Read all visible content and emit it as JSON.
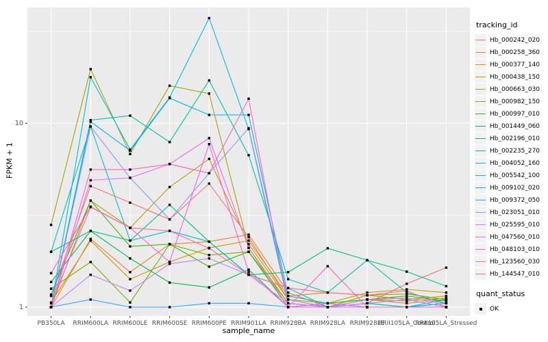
{
  "figure": {
    "y_axis_title": "FPKM + 1",
    "x_axis_title": "sample_name"
  },
  "chart_data": {
    "type": "line",
    "title": "",
    "xlabel": "sample_name",
    "ylabel": "FPKM + 1",
    "y_scale": "log10",
    "ylim": [
      0.9,
      42.6
    ],
    "grid": true,
    "legend_position": "right",
    "legend_title": "tracking_id",
    "point_legend": {
      "title": "quant_status",
      "label": "OK",
      "marker": "black-square"
    },
    "y_ticks": [
      {
        "label": "10",
        "value": 10
      },
      {
        "label": "1",
        "value": 1
      }
    ],
    "y_minor_gridlines": [
      3.162,
      31.62
    ],
    "categories": [
      "PB350LA",
      "RRIM600LA",
      "RRIM600LE",
      "RRIM600SE",
      "RRIM600PE",
      "RRIM901LA",
      "RRIM928BA",
      "RRIM928LA",
      "RRIM928LE",
      "RRII105LA_Control",
      "RRII105LA_Stressed"
    ],
    "series": [
      {
        "name": "Hb_000242_020",
        "color": "#F8766D",
        "values": [
          1.15,
          4.55,
          3.7,
          3.0,
          4.7,
          2.4,
          1.1,
          1.0,
          1.05,
          1.34,
          1.64
        ]
      },
      {
        "name": "Hb_000258_360",
        "color": "#EA8331",
        "values": [
          1.0,
          2.35,
          1.55,
          2.2,
          2.27,
          2.48,
          1.2,
          1.0,
          1.1,
          1.05,
          1.1
        ]
      },
      {
        "name": "Hb_000377_140",
        "color": "#D89000",
        "values": [
          1.06,
          2.3,
          1.42,
          1.76,
          2.1,
          2.3,
          1.15,
          1.2,
          1.16,
          1.1,
          1.15
        ]
      },
      {
        "name": "Hb_000438_150",
        "color": "#C09B00",
        "values": [
          1.0,
          3.8,
          2.7,
          4.5,
          6.4,
          2.2,
          1.1,
          1.05,
          1.2,
          1.25,
          1.2
        ]
      },
      {
        "name": "Hb_000663_030",
        "color": "#A3A500",
        "values": [
          2.8,
          19.7,
          6.8,
          16.0,
          14.5,
          2.1,
          1.05,
          1.0,
          1.1,
          1.08,
          1.12
        ]
      },
      {
        "name": "Hb_000982_150",
        "color": "#7CAE00",
        "values": [
          1.26,
          1.76,
          1.06,
          2.2,
          1.92,
          2.0,
          1.05,
          1.0,
          1.16,
          1.18,
          1.1
        ]
      },
      {
        "name": "Hb_000997_010",
        "color": "#39B600",
        "values": [
          1.17,
          3.8,
          2.14,
          2.2,
          1.66,
          2.0,
          1.0,
          1.05,
          1.1,
          1.15,
          1.08
        ]
      },
      {
        "name": "Hb_001449_060",
        "color": "#00BB4E",
        "values": [
          1.37,
          2.6,
          1.84,
          1.36,
          1.28,
          1.6,
          1.0,
          1.0,
          1.05,
          1.0,
          1.05
        ]
      },
      {
        "name": "Hb_002196_010",
        "color": "#00BF7D",
        "values": [
          2.0,
          2.6,
          2.3,
          3.6,
          2.27,
          1.5,
          1.55,
          2.09,
          1.8,
          1.56,
          1.3
        ]
      },
      {
        "name": "Hb_002235_270",
        "color": "#00C1A3",
        "values": [
          1.0,
          10.4,
          11.0,
          7.9,
          17.1,
          6.7,
          1.42,
          1.2,
          1.8,
          1.2,
          1.05
        ]
      },
      {
        "name": "Hb_004052_160",
        "color": "#00BFC4",
        "values": [
          2.0,
          9.6,
          2.3,
          2.6,
          2.27,
          1.5,
          1.27,
          1.0,
          1.05,
          1.0,
          1.1
        ]
      },
      {
        "name": "Hb_005542_100",
        "color": "#00BAE0",
        "values": [
          1.0,
          17.8,
          7.2,
          13.8,
          37.3,
          9.3,
          1.05,
          1.0,
          1.0,
          1.0,
          1.0
        ]
      },
      {
        "name": "Hb_009102_020",
        "color": "#00B0F6",
        "values": [
          1.0,
          10.2,
          7.1,
          13.7,
          11.1,
          11.1,
          1.15,
          1.05,
          1.0,
          1.0,
          1.05
        ]
      },
      {
        "name": "Hb_009372_050",
        "color": "#35A2FF",
        "values": [
          1.0,
          1.1,
          1.0,
          1.0,
          1.05,
          1.05,
          1.0,
          1.0,
          1.0,
          1.0,
          1.0
        ]
      },
      {
        "name": "Hb_023051_010",
        "color": "#9590FF",
        "values": [
          1.0,
          9.6,
          5.05,
          3.0,
          5.35,
          9.4,
          1.1,
          1.0,
          1.05,
          1.1,
          1.0
        ]
      },
      {
        "name": "Hb_025595_010",
        "color": "#C77CFF",
        "values": [
          1.0,
          1.5,
          1.23,
          1.72,
          1.84,
          1.5,
          1.05,
          1.0,
          1.1,
          1.12,
          1.05
        ]
      },
      {
        "name": "Hb_047560_010",
        "color": "#E76BF3",
        "values": [
          1.0,
          4.9,
          5.05,
          6.0,
          8.3,
          2.1,
          1.0,
          1.0,
          1.0,
          1.0,
          1.0
        ]
      },
      {
        "name": "Hb_048103_010",
        "color": "#FA62DB",
        "values": [
          1.05,
          3.5,
          2.7,
          1.76,
          7.7,
          1.55,
          1.0,
          1.05,
          1.0,
          1.0,
          1.0
        ]
      },
      {
        "name": "Hb_123560_030",
        "color": "#FF62BC",
        "values": [
          1.0,
          5.6,
          5.6,
          6.0,
          5.35,
          13.6,
          1.0,
          1.67,
          1.0,
          1.0,
          1.0
        ]
      },
      {
        "name": "Hb_144547_010",
        "color": "#FF6A98",
        "values": [
          1.53,
          3.52,
          2.7,
          2.6,
          2.09,
          1.5,
          1.27,
          1.2,
          1.16,
          1.23,
          1.0
        ]
      }
    ]
  }
}
